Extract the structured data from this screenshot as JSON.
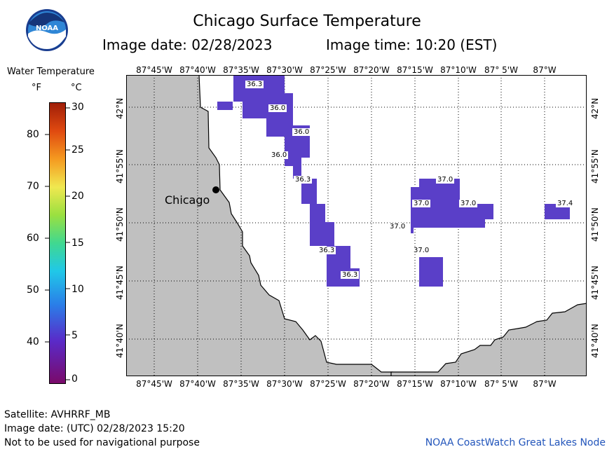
{
  "title": "Chicago Surface Temperature",
  "image_date_label": "Image date: 02/28/2023",
  "image_time_label": "Image time: 10:20 (EST)",
  "logo_text": "NOAA",
  "scale": {
    "title": "Water Temperature",
    "f_unit": "°F",
    "c_unit": "°C",
    "f_ticks": [
      "80",
      "70",
      "60",
      "50",
      "40"
    ],
    "c_ticks": [
      "30",
      "25",
      "20",
      "15",
      "10",
      "5",
      "0"
    ]
  },
  "lon_labels_top": [
    "87°45'W",
    "87°40'W",
    "87°35'W",
    "87°30'W",
    "87°25'W",
    "87°20'W",
    "87°15'W",
    "87°10'W",
    "87° 5'W",
    "87°W"
  ],
  "lon_labels_bottom": [
    "87°45'W",
    "87°40'W",
    "87°35'W",
    "87°30'W",
    "87°25'W",
    "87°20'W",
    "87°15'W",
    "87°10'W",
    "87° 5'W",
    "87°W"
  ],
  "lat_labels": [
    "42°N",
    "41°55'N",
    "41°50'N",
    "41°45'N",
    "41°40'N"
  ],
  "city_label": "Chicago",
  "temp_labels": [
    "36.3",
    "36.0",
    "36.0",
    "36.0",
    "36.3",
    "36.3",
    "36.3",
    "37.0",
    "37.0",
    "37.0",
    "37.0",
    "37.0",
    "37.4"
  ],
  "footer": {
    "satellite": "Satellite: AVHRRF_MB",
    "utc_date": "Image date: (UTC) 02/28/2023   15:20",
    "disclaimer": "Not to be used for navigational purpose",
    "node": "NOAA CoastWatch Great Lakes Node"
  },
  "colors": {
    "land": "#c0c0c0",
    "water": "#ffffff",
    "warm_water": "#5a3fc8",
    "node_text": "#2255bb"
  }
}
